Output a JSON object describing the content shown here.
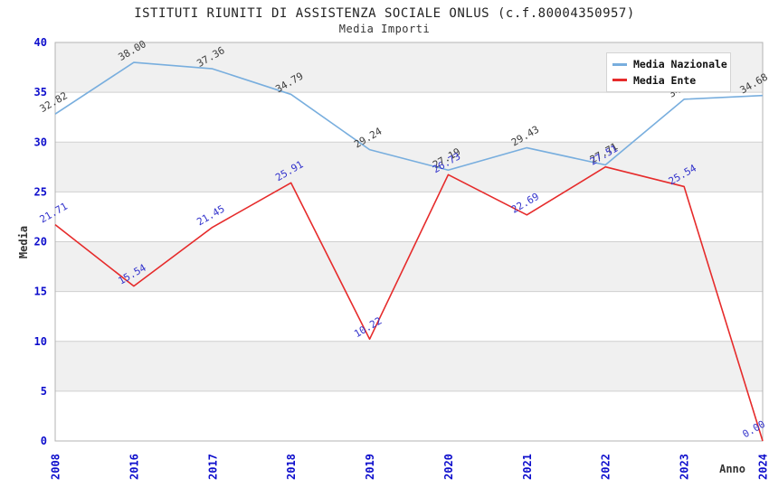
{
  "page": {
    "title": "ISTITUTI RIUNITI DI ASSISTENZA SOCIALE ONLUS (c.f.80004350957)",
    "subtitle": "Media Importi"
  },
  "legend": {
    "items": [
      {
        "label": "Media Nazionale",
        "color": "#78aede"
      },
      {
        "label": "Media Ente",
        "color": "#e62b2b"
      }
    ]
  },
  "chart_data": {
    "type": "line",
    "title": "ISTITUTI RIUNITI DI ASSISTENZA SOCIALE ONLUS (c.f.80004350957)",
    "subtitle": "Media Importi",
    "xlabel": "Anno",
    "ylabel": "Media",
    "ylim": [
      0,
      40
    ],
    "yticks": [
      0,
      5,
      10,
      15,
      20,
      25,
      30,
      35,
      40
    ],
    "grid": true,
    "legend_position": "top-right",
    "band_colors": [
      "#ffffff",
      "#f0f0f0"
    ],
    "axis_tick_color": "#0d0dcc",
    "categories": [
      "2008",
      "2016",
      "2017",
      "2018",
      "2019",
      "2020",
      "2021",
      "2022",
      "2023",
      "2024"
    ],
    "series": [
      {
        "name": "Media Nazionale",
        "color": "#78aede",
        "label_color": "#3c3c3c",
        "values": [
          32.82,
          38.0,
          37.36,
          34.79,
          29.24,
          27.19,
          29.43,
          27.71,
          34.3,
          34.68
        ],
        "labels": [
          "32.82",
          "38.00",
          "37.36",
          "34.79",
          "29.24",
          "27.19",
          "29.43",
          "27.71",
          "34.30",
          "34.68"
        ]
      },
      {
        "name": "Media Ente",
        "color": "#e62b2b",
        "label_color": "#3333cc",
        "values": [
          21.71,
          15.54,
          21.45,
          25.91,
          10.22,
          26.73,
          22.69,
          27.51,
          25.54,
          0.0
        ],
        "labels": [
          "21.71",
          "15.54",
          "21.45",
          "25.91",
          "10.22",
          "26.73",
          "22.69",
          "27.51",
          "25.54",
          "0.00"
        ]
      }
    ]
  }
}
